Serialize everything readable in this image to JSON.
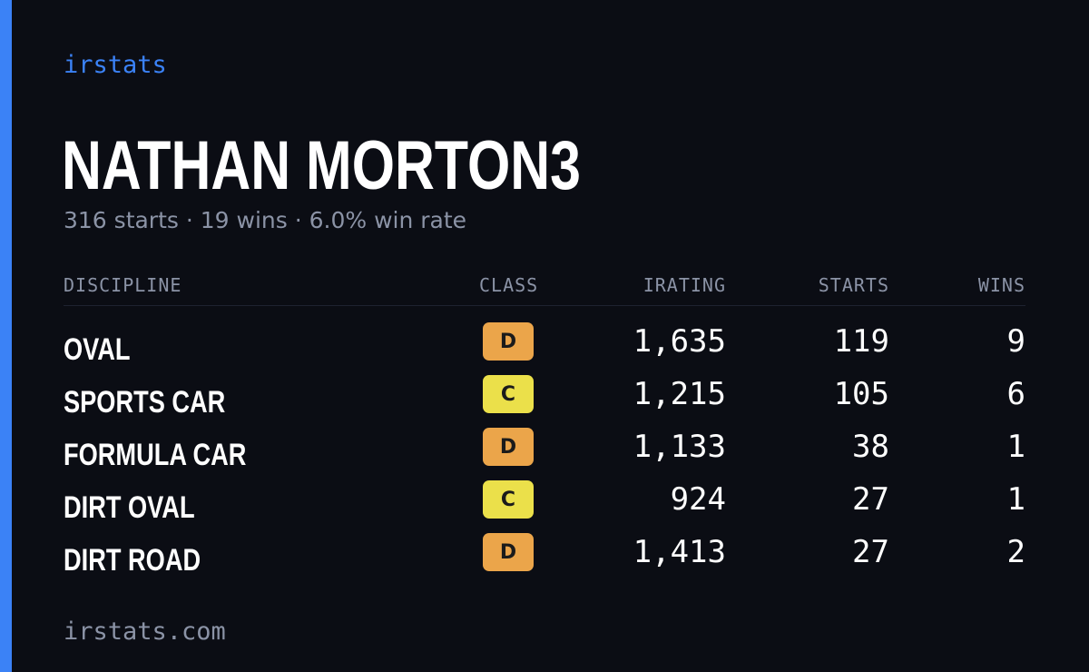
{
  "brand": "irstats",
  "driver": {
    "name": "NATHAN MORTON3",
    "summary": "316 starts · 19 wins · 6.0% win rate"
  },
  "table": {
    "headers": {
      "discipline": "DISCIPLINE",
      "class": "CLASS",
      "irating": "IRATING",
      "starts": "STARTS",
      "wins": "WINS"
    },
    "rows": [
      {
        "discipline": "OVAL",
        "class": "D",
        "irating": "1,635",
        "starts": "119",
        "wins": "9"
      },
      {
        "discipline": "SPORTS CAR",
        "class": "C",
        "irating": "1,215",
        "starts": "105",
        "wins": "6"
      },
      {
        "discipline": "FORMULA CAR",
        "class": "D",
        "irating": "1,133",
        "starts": "38",
        "wins": "1"
      },
      {
        "discipline": "DIRT OVAL",
        "class": "C",
        "irating": "924",
        "starts": "27",
        "wins": "1"
      },
      {
        "discipline": "DIRT ROAD",
        "class": "D",
        "irating": "1,413",
        "starts": "27",
        "wins": "2"
      }
    ]
  },
  "class_colors": {
    "D": "#eba54a",
    "C": "#ebe04a"
  },
  "colors": {
    "accent": "#3b82f6",
    "background": "#0b0d14",
    "muted": "#8b93a6"
  },
  "footer": "irstats.com"
}
